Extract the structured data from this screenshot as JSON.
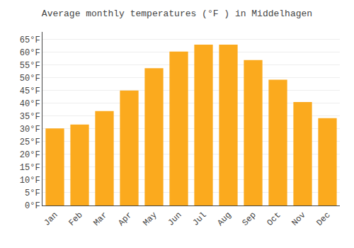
{
  "chart_data": {
    "type": "bar",
    "title": "Average monthly temperatures (°F ) in Middelhagen",
    "categories": [
      "Jan",
      "Feb",
      "Mar",
      "Apr",
      "May",
      "Jun",
      "Jul",
      "Aug",
      "Sep",
      "Oct",
      "Nov",
      "Dec"
    ],
    "values": [
      30.2,
      31.7,
      37.0,
      45.0,
      53.8,
      60.3,
      63.0,
      63.0,
      57.0,
      49.3,
      40.5,
      34.2
    ],
    "color": "#FBAA1E",
    "ylim": [
      0,
      68
    ],
    "yticks": [
      {
        "value": 0,
        "label": "0°F"
      },
      {
        "value": 5,
        "label": "5°F"
      },
      {
        "value": 10,
        "label": "10°F"
      },
      {
        "value": 15,
        "label": "15°F"
      },
      {
        "value": 20,
        "label": "20°F"
      },
      {
        "value": 25,
        "label": "25°F"
      },
      {
        "value": 30,
        "label": "30°F"
      },
      {
        "value": 35,
        "label": "35°F"
      },
      {
        "value": 40,
        "label": "40°F"
      },
      {
        "value": 45,
        "label": "45°F"
      },
      {
        "value": 50,
        "label": "50°F"
      },
      {
        "value": 55,
        "label": "55°F"
      },
      {
        "value": 60,
        "label": "60°F"
      },
      {
        "value": 65,
        "label": "65°F"
      }
    ],
    "grid": true
  }
}
